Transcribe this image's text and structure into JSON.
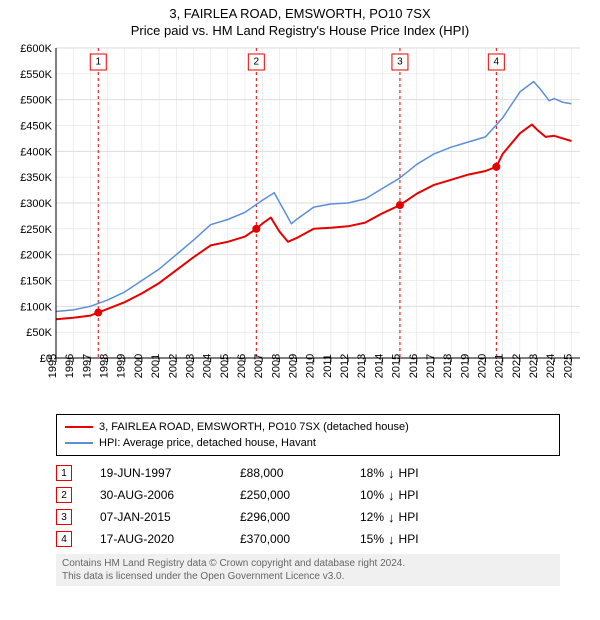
{
  "title_line1": "3, FAIRLEA ROAD, EMSWORTH, PO10 7SX",
  "title_line2": "Price paid vs. HM Land Registry's House Price Index (HPI)",
  "chart": {
    "type": "line",
    "background_color": "#ffffff",
    "grid_color": "#dddddd",
    "axis_color": "#000000",
    "x_years": [
      1995,
      1996,
      1997,
      1998,
      1999,
      2000,
      2001,
      2002,
      2003,
      2004,
      2005,
      2006,
      2007,
      2008,
      2009,
      2010,
      2011,
      2012,
      2013,
      2014,
      2015,
      2016,
      2017,
      2018,
      2019,
      2020,
      2021,
      2022,
      2023,
      2024,
      2025
    ],
    "x_domain": [
      1995,
      2025.5
    ],
    "y_domain": [
      0,
      600000
    ],
    "y_ticks": [
      0,
      50000,
      100000,
      150000,
      200000,
      250000,
      300000,
      350000,
      400000,
      450000,
      500000,
      550000,
      600000
    ],
    "y_tick_labels": [
      "£0",
      "£50K",
      "£100K",
      "£150K",
      "£200K",
      "£250K",
      "£300K",
      "£350K",
      "£400K",
      "£450K",
      "£500K",
      "£550K",
      "£600K"
    ],
    "y_grid_major_every": 100000,
    "series": [
      {
        "name": "3, FAIRLEA ROAD, EMSWORTH, PO10 7SX (detached house)",
        "color": "#e60000",
        "width": 2,
        "points": [
          [
            1995.0,
            75000
          ],
          [
            1996.0,
            78000
          ],
          [
            1997.0,
            82000
          ],
          [
            1997.46,
            88000
          ],
          [
            1998.0,
            95000
          ],
          [
            1999.0,
            108000
          ],
          [
            2000.0,
            125000
          ],
          [
            2001.0,
            145000
          ],
          [
            2002.0,
            170000
          ],
          [
            2003.0,
            195000
          ],
          [
            2004.0,
            218000
          ],
          [
            2005.0,
            225000
          ],
          [
            2006.0,
            235000
          ],
          [
            2006.66,
            250000
          ],
          [
            2007.0,
            260000
          ],
          [
            2007.5,
            272000
          ],
          [
            2008.0,
            245000
          ],
          [
            2008.5,
            225000
          ],
          [
            2009.0,
            232000
          ],
          [
            2010.0,
            250000
          ],
          [
            2011.0,
            252000
          ],
          [
            2012.0,
            255000
          ],
          [
            2013.0,
            262000
          ],
          [
            2014.0,
            280000
          ],
          [
            2015.02,
            296000
          ],
          [
            2016.0,
            318000
          ],
          [
            2017.0,
            335000
          ],
          [
            2018.0,
            345000
          ],
          [
            2019.0,
            355000
          ],
          [
            2020.0,
            362000
          ],
          [
            2020.63,
            370000
          ],
          [
            2021.0,
            395000
          ],
          [
            2022.0,
            435000
          ],
          [
            2022.7,
            452000
          ],
          [
            2023.0,
            442000
          ],
          [
            2023.5,
            428000
          ],
          [
            2024.0,
            430000
          ],
          [
            2024.5,
            425000
          ],
          [
            2025.0,
            420000
          ]
        ]
      },
      {
        "name": "HPI: Average price, detached house, Havant",
        "color": "#5b8fd6",
        "width": 1.5,
        "points": [
          [
            1995.0,
            90000
          ],
          [
            1996.0,
            93000
          ],
          [
            1997.0,
            100000
          ],
          [
            1998.0,
            112000
          ],
          [
            1999.0,
            128000
          ],
          [
            2000.0,
            150000
          ],
          [
            2001.0,
            172000
          ],
          [
            2002.0,
            200000
          ],
          [
            2003.0,
            228000
          ],
          [
            2004.0,
            258000
          ],
          [
            2005.0,
            268000
          ],
          [
            2006.0,
            282000
          ],
          [
            2007.0,
            305000
          ],
          [
            2007.7,
            320000
          ],
          [
            2008.2,
            290000
          ],
          [
            2008.7,
            260000
          ],
          [
            2009.0,
            268000
          ],
          [
            2010.0,
            292000
          ],
          [
            2011.0,
            298000
          ],
          [
            2012.0,
            300000
          ],
          [
            2013.0,
            308000
          ],
          [
            2014.0,
            328000
          ],
          [
            2015.0,
            348000
          ],
          [
            2016.0,
            375000
          ],
          [
            2017.0,
            395000
          ],
          [
            2018.0,
            408000
          ],
          [
            2019.0,
            418000
          ],
          [
            2020.0,
            428000
          ],
          [
            2021.0,
            465000
          ],
          [
            2022.0,
            515000
          ],
          [
            2022.8,
            535000
          ],
          [
            2023.2,
            520000
          ],
          [
            2023.7,
            498000
          ],
          [
            2024.0,
            502000
          ],
          [
            2024.5,
            495000
          ],
          [
            2025.0,
            492000
          ]
        ]
      }
    ],
    "sale_markers": [
      {
        "n": "1",
        "year": 1997.46,
        "price": 88000
      },
      {
        "n": "2",
        "year": 2006.66,
        "price": 250000
      },
      {
        "n": "3",
        "year": 2015.02,
        "price": 296000
      },
      {
        "n": "4",
        "year": 2020.63,
        "price": 370000
      }
    ],
    "marker_line_color": "#e60000",
    "marker_dot_color": "#e60000",
    "marker_box_top_y": 0.98,
    "label_fontsize": 11
  },
  "legend": {
    "items": [
      {
        "color": "#e60000",
        "label": "3, FAIRLEA ROAD, EMSWORTH, PO10 7SX (detached house)"
      },
      {
        "color": "#5b8fd6",
        "label": "HPI: Average price, detached house, Havant"
      }
    ]
  },
  "sales": [
    {
      "n": "1",
      "date": "19-JUN-1997",
      "price": "£88,000",
      "diff_pct": "18%",
      "diff_dir": "↓",
      "vs": "HPI"
    },
    {
      "n": "2",
      "date": "30-AUG-2006",
      "price": "£250,000",
      "diff_pct": "10%",
      "diff_dir": "↓",
      "vs": "HPI"
    },
    {
      "n": "3",
      "date": "07-JAN-2015",
      "price": "£296,000",
      "diff_pct": "12%",
      "diff_dir": "↓",
      "vs": "HPI"
    },
    {
      "n": "4",
      "date": "17-AUG-2020",
      "price": "£370,000",
      "diff_pct": "15%",
      "diff_dir": "↓",
      "vs": "HPI"
    }
  ],
  "footer_line1": "Contains HM Land Registry data © Crown copyright and database right 2024.",
  "footer_line2": "This data is licensed under the Open Government Licence v3.0."
}
